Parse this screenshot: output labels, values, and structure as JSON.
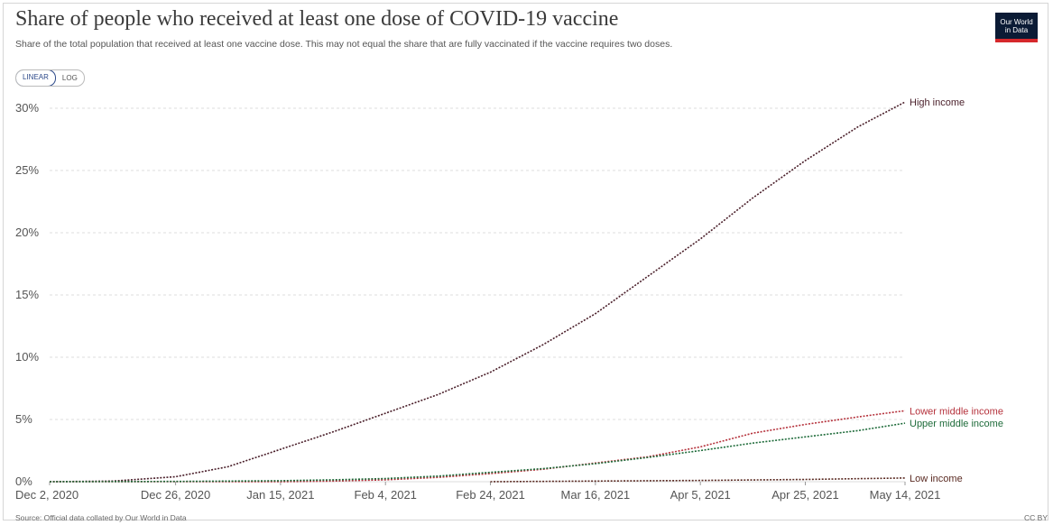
{
  "header": {
    "title": "Share of people who received at least one dose of COVID-19 vaccine",
    "subtitle": "Share of the total population that received at least one vaccine dose. This may not equal the share that are fully vaccinated if the vaccine requires two doses."
  },
  "logo": {
    "line1": "Our World",
    "line2": "in Data",
    "colors": {
      "bg": "#0b1b35",
      "accent": "#d6282c"
    }
  },
  "scale_toggle": {
    "linear": "LINEAR",
    "log": "LOG",
    "selected": "LINEAR"
  },
  "footer": {
    "source": "Source: Official data collated by Our World in Data",
    "license": "CC BY"
  },
  "chart_data": {
    "type": "line",
    "title": "Share of people who received at least one dose of COVID-19 vaccine",
    "y_unit": "%",
    "ylim": [
      0,
      30
    ],
    "xlim": [
      "2020-12-02",
      "2021-05-14"
    ],
    "y_ticks": [
      {
        "value": 0,
        "label": "0%"
      },
      {
        "value": 5,
        "label": "5%"
      },
      {
        "value": 10,
        "label": "10%"
      },
      {
        "value": 15,
        "label": "15%"
      },
      {
        "value": 20,
        "label": "20%"
      },
      {
        "value": 25,
        "label": "25%"
      },
      {
        "value": 30,
        "label": "30%"
      }
    ],
    "x_ticks": [
      {
        "date": "2020-12-02",
        "label": "Dec 2, 2020"
      },
      {
        "date": "2020-12-26",
        "label": "Dec 26, 2020"
      },
      {
        "date": "2021-01-15",
        "label": "Jan 15, 2021"
      },
      {
        "date": "2021-02-04",
        "label": "Feb 4, 2021"
      },
      {
        "date": "2021-02-24",
        "label": "Feb 24, 2021"
      },
      {
        "date": "2021-03-16",
        "label": "Mar 16, 2021"
      },
      {
        "date": "2021-04-05",
        "label": "Apr 5, 2021"
      },
      {
        "date": "2021-04-25",
        "label": "Apr 25, 2021"
      },
      {
        "date": "2021-05-14",
        "label": "May 14, 2021"
      }
    ],
    "grid": "horizontal dashed",
    "legend": "line-end labels",
    "series": [
      {
        "name": "High income",
        "color": "#4a1f2a",
        "points": [
          [
            "2020-12-02",
            0
          ],
          [
            "2020-12-14",
            0.05
          ],
          [
            "2020-12-26",
            0.4
          ],
          [
            "2021-01-05",
            1.2
          ],
          [
            "2021-01-15",
            2.6
          ],
          [
            "2021-01-25",
            4.0
          ],
          [
            "2021-02-04",
            5.5
          ],
          [
            "2021-02-14",
            7.0
          ],
          [
            "2021-02-24",
            8.8
          ],
          [
            "2021-03-06",
            11.0
          ],
          [
            "2021-03-16",
            13.5
          ],
          [
            "2021-03-26",
            16.5
          ],
          [
            "2021-04-05",
            19.5
          ],
          [
            "2021-04-15",
            22.8
          ],
          [
            "2021-04-25",
            25.8
          ],
          [
            "2021-05-05",
            28.5
          ],
          [
            "2021-05-14",
            30.5
          ]
        ]
      },
      {
        "name": "Lower middle income",
        "color": "#b5323c",
        "points": [
          [
            "2020-12-02",
            0
          ],
          [
            "2021-01-15",
            0.0
          ],
          [
            "2021-01-25",
            0.05
          ],
          [
            "2021-02-04",
            0.15
          ],
          [
            "2021-02-14",
            0.35
          ],
          [
            "2021-02-24",
            0.65
          ],
          [
            "2021-03-06",
            1.0
          ],
          [
            "2021-03-16",
            1.5
          ],
          [
            "2021-03-26",
            2.0
          ],
          [
            "2021-04-05",
            2.8
          ],
          [
            "2021-04-15",
            3.9
          ],
          [
            "2021-04-25",
            4.6
          ],
          [
            "2021-05-05",
            5.2
          ],
          [
            "2021-05-14",
            5.7
          ]
        ]
      },
      {
        "name": "Upper middle income",
        "color": "#1e6b3a",
        "points": [
          [
            "2020-12-02",
            0
          ],
          [
            "2020-12-26",
            0.02
          ],
          [
            "2021-01-15",
            0.08
          ],
          [
            "2021-01-25",
            0.15
          ],
          [
            "2021-02-04",
            0.25
          ],
          [
            "2021-02-14",
            0.45
          ],
          [
            "2021-02-24",
            0.75
          ],
          [
            "2021-03-06",
            1.05
          ],
          [
            "2021-03-16",
            1.45
          ],
          [
            "2021-03-26",
            1.95
          ],
          [
            "2021-04-05",
            2.5
          ],
          [
            "2021-04-15",
            3.1
          ],
          [
            "2021-04-25",
            3.6
          ],
          [
            "2021-05-05",
            4.1
          ],
          [
            "2021-05-14",
            4.7
          ]
        ]
      },
      {
        "name": "Low income",
        "color": "#5a2a22",
        "points": [
          [
            "2021-02-24",
            0.0
          ],
          [
            "2021-03-16",
            0.05
          ],
          [
            "2021-04-05",
            0.1
          ],
          [
            "2021-04-25",
            0.18
          ],
          [
            "2021-05-14",
            0.3
          ]
        ]
      }
    ]
  }
}
